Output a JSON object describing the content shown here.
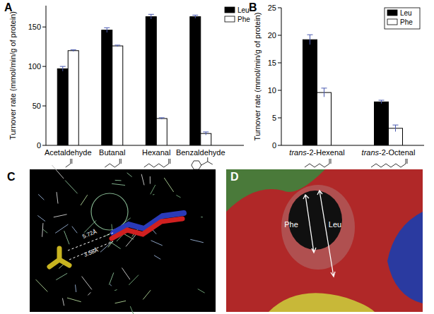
{
  "chart_data": [
    {
      "type": "bar",
      "title": "A",
      "y_label": "Turnover rate (mmol/min/g of protein)",
      "categories": [
        "Acetaldehyde",
        "Butanal",
        "Hexanal",
        "Benzaldehyde"
      ],
      "series": [
        {
          "name": "Leu",
          "color": "#000000",
          "values": [
            97,
            146,
            163,
            163
          ],
          "errors": [
            3,
            3,
            3,
            2
          ]
        },
        {
          "name": "Phe",
          "color": "#ffffff",
          "values": [
            120,
            126,
            34,
            15
          ],
          "errors": [
            1,
            1,
            1,
            2
          ]
        }
      ],
      "ylim": [
        0,
        177
      ],
      "yticks": [
        0,
        50,
        100,
        150
      ],
      "legend": "top-right",
      "grid": false
    },
    {
      "type": "bar",
      "title": "B",
      "y_label": "Turnover rate (mmol/min/g of protein)",
      "categories": [
        "trans-2-Hexenal",
        "trans-2-Octenal"
      ],
      "series": [
        {
          "name": "Leu",
          "color": "#000000",
          "values": [
            19.2,
            7.9
          ],
          "errors": [
            0.9,
            0.3
          ]
        },
        {
          "name": "Phe",
          "color": "#ffffff",
          "values": [
            9.6,
            3.1
          ],
          "errors": [
            0.8,
            0.6
          ]
        }
      ],
      "ylim": [
        0,
        25
      ],
      "yticks": [
        0,
        5,
        10,
        15,
        20,
        25
      ],
      "legend": "top-right",
      "grid": false
    }
  ],
  "panels": [
    {
      "title": "C",
      "annotations": [
        "5.72Å",
        "3.58Å"
      ]
    },
    {
      "title": "D",
      "annotations": [
        "Phe",
        "Leu"
      ]
    }
  ]
}
